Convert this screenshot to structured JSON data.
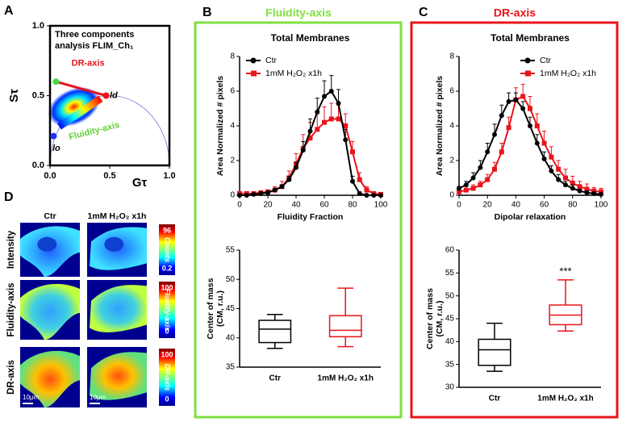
{
  "figure": {
    "panel_labels": [
      "A",
      "B",
      "C",
      "D"
    ],
    "panel_titles": [
      "Fluidity-axis",
      "DR-axis"
    ],
    "image_panel": {
      "columns": [
        "Ctr",
        "1mM H₂O₂ x1h"
      ],
      "rows": [
        "Intensity",
        "Fluidity-axis",
        "DR-axis"
      ],
      "colorbars": [
        {
          "max": 96,
          "min": 0.2,
          "label": "Counts"
        },
        {
          "max": 100,
          "min": 0,
          "label": "Fluidity-axis"
        },
        {
          "max": 100,
          "min": 0,
          "label": "DR-axis"
        }
      ],
      "scale_bar": "10μm"
    }
  },
  "chart_data": [
    {
      "type": "phasor",
      "xlabel": "Gτ",
      "ylabel": "Sτ",
      "xlim": [
        0,
        1
      ],
      "ylim": [
        0,
        1
      ],
      "xticks": [
        {
          "value": 0,
          "label": "0.0"
        },
        0.5,
        {
          "value": 1,
          "label": "1.0"
        }
      ],
      "yticks": [
        {
          "value": 0,
          "label": "0.0"
        },
        0.5,
        {
          "value": 1,
          "label": "1.0"
        }
      ],
      "text": [
        "Three components",
        "analysis FLIM_Ch₁"
      ],
      "axis_labels": [
        "DR-axis",
        "Fluidity-axis"
      ],
      "corner_labels": [
        "ld",
        "lo"
      ]
    },
    {
      "type": "line",
      "title": "Total Membranes",
      "xlabel": "Fluidity Fraction",
      "ylabel": "Area Normalized # pixels",
      "xlim": [
        0,
        100
      ],
      "ylim": [
        0,
        8
      ],
      "xticks": [
        0,
        20,
        40,
        60,
        80,
        100
      ],
      "yticks": [
        0,
        2,
        4,
        6,
        8
      ],
      "legend": "upper left",
      "x": [
        0,
        5,
        10,
        15,
        20,
        25,
        30,
        35,
        40,
        45,
        50,
        55,
        60,
        65,
        70,
        75,
        80,
        85,
        90,
        95,
        100
      ],
      "series": [
        {
          "name": "Ctr",
          "color": "#000000",
          "marker": "circle",
          "values": [
            0,
            0,
            0.05,
            0.1,
            0.15,
            0.3,
            0.5,
            0.9,
            1.6,
            2.6,
            3.7,
            4.8,
            5.7,
            6.0,
            5.3,
            3.2,
            0.8,
            0.1,
            0,
            0,
            0
          ],
          "errors": [
            0,
            0,
            0,
            0.05,
            0.05,
            0.1,
            0.1,
            0.2,
            0.3,
            0.5,
            0.7,
            0.8,
            0.9,
            0.9,
            0.8,
            0.6,
            0.3,
            0.1,
            0,
            0,
            0
          ]
        },
        {
          "name": "1mM H₂O₂ x1h",
          "color": "#e8141b",
          "marker": "square",
          "values": [
            0.1,
            0.1,
            0.1,
            0.15,
            0.2,
            0.3,
            0.5,
            1.0,
            1.8,
            2.7,
            3.3,
            3.8,
            4.2,
            4.4,
            4.4,
            4.0,
            2.5,
            0.9,
            0.3,
            0.1,
            0.05
          ],
          "errors": [
            0.1,
            0.1,
            0.1,
            0.1,
            0.1,
            0.2,
            0.3,
            0.4,
            0.6,
            0.8,
            0.9,
            0.9,
            0.9,
            0.9,
            0.8,
            0.7,
            0.6,
            0.4,
            0.2,
            0.1,
            0.05
          ]
        }
      ]
    },
    {
      "type": "box",
      "ylabel": [
        "Center of mass",
        "(CM, r.u.)"
      ],
      "ylim": [
        35,
        55
      ],
      "yticks": [
        35,
        40,
        45,
        50,
        55
      ],
      "categories": [
        "Ctr",
        "1mM H₂O₂ x1h"
      ],
      "colors": [
        "#000000",
        "#e8141b"
      ],
      "min": [
        38.2,
        38.5
      ],
      "q1": [
        39.2,
        40.2
      ],
      "median": [
        41.5,
        41.3
      ],
      "q3": [
        43,
        43.8
      ],
      "max": [
        44,
        48.5
      ]
    },
    {
      "type": "line",
      "title": "Total Membranes",
      "xlabel": "Dipolar relaxation",
      "ylabel": "Area Normalized # pixels",
      "xlim": [
        0,
        100
      ],
      "ylim": [
        0,
        8
      ],
      "xticks": [
        0,
        20,
        40,
        60,
        80,
        100
      ],
      "yticks": [
        0,
        2,
        4,
        6,
        8
      ],
      "legend": "upper right",
      "x": [
        0,
        5,
        10,
        15,
        20,
        25,
        30,
        35,
        40,
        45,
        50,
        55,
        60,
        65,
        70,
        75,
        80,
        85,
        90,
        95,
        100
      ],
      "series": [
        {
          "name": "Ctr",
          "color": "#000000",
          "marker": "circle",
          "values": [
            0.4,
            0.6,
            1.0,
            1.6,
            2.5,
            3.5,
            4.6,
            5.4,
            5.5,
            5.0,
            4.0,
            3.0,
            2.1,
            1.4,
            0.9,
            0.6,
            0.4,
            0.25,
            0.15,
            0.1,
            0.05
          ],
          "errors": [
            0.1,
            0.2,
            0.3,
            0.4,
            0.5,
            0.6,
            0.6,
            0.5,
            0.4,
            0.4,
            0.5,
            0.5,
            0.4,
            0.3,
            0.3,
            0.2,
            0.2,
            0.1,
            0.1,
            0.1,
            0.05
          ]
        },
        {
          "name": "1mM H₂O₂ x1h",
          "color": "#e8141b",
          "marker": "square",
          "values": [
            0.2,
            0.3,
            0.4,
            0.6,
            0.9,
            1.5,
            2.5,
            3.9,
            5.5,
            5.7,
            5.0,
            4.0,
            3.0,
            2.2,
            1.5,
            1.0,
            0.7,
            0.5,
            0.35,
            0.25,
            0.2
          ],
          "errors": [
            0.1,
            0.1,
            0.2,
            0.2,
            0.3,
            0.4,
            0.5,
            0.6,
            0.7,
            0.7,
            0.7,
            0.7,
            0.7,
            0.6,
            0.5,
            0.5,
            0.4,
            0.3,
            0.3,
            0.2,
            0.2
          ]
        }
      ]
    },
    {
      "type": "box",
      "ylabel": [
        "Center of mass",
        "(CM, r.u.)"
      ],
      "ylim": [
        30,
        60
      ],
      "yticks": [
        30,
        35,
        40,
        45,
        50,
        55,
        60
      ],
      "categories": [
        "Ctr",
        "1mM H₂O₂ x1h"
      ],
      "colors": [
        "#000000",
        "#e8141b"
      ],
      "min": [
        33.5,
        42.3
      ],
      "q1": [
        34.8,
        43.7
      ],
      "median": [
        38.2,
        45.8
      ],
      "q3": [
        40.5,
        48
      ],
      "max": [
        44,
        53.5
      ],
      "annotation": "***"
    }
  ]
}
